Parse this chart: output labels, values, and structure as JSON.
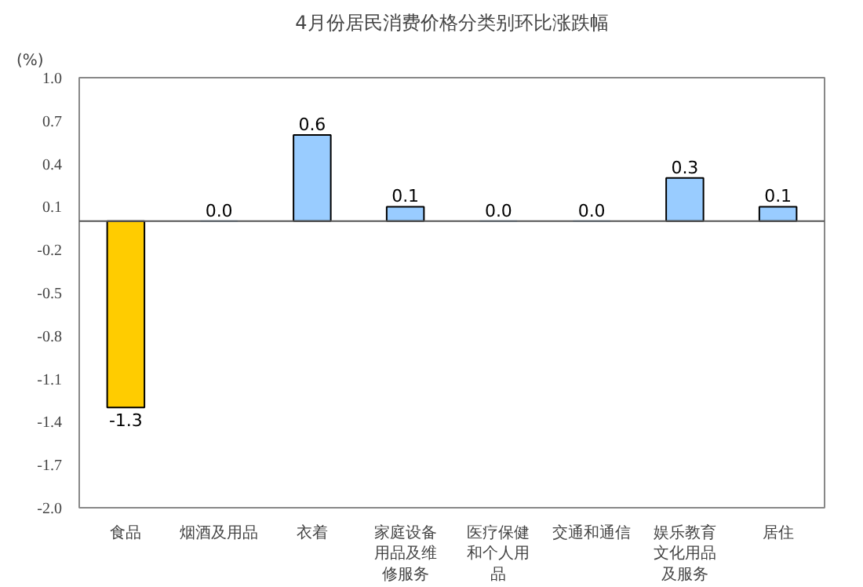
{
  "chart_data": {
    "type": "bar",
    "title": "4月份居民消费价格分类别环比涨跌幅",
    "ylabel": "(%)",
    "categories": [
      "食品",
      "烟酒及用品",
      "衣着",
      "家庭设备用品及维修服务",
      "医疗保健和个人用品",
      "交通和通信",
      "娱乐教育文化用品及服务",
      "居住"
    ],
    "values": [
      -1.3,
      0.0,
      0.6,
      0.1,
      0.0,
      0.0,
      0.3,
      0.1
    ],
    "value_labels": [
      "-1.3",
      "0.0",
      "0.6",
      "0.1",
      "0.0",
      "0.0",
      "0.3",
      "0.1"
    ],
    "colors": [
      "#ffcc00",
      "#99ccff",
      "#99ccff",
      "#99ccff",
      "#99ccff",
      "#99ccff",
      "#99ccff",
      "#99ccff"
    ],
    "ylim": [
      -2.0,
      1.0
    ],
    "yticks": [
      {
        "value": 1.0,
        "label": "1.0"
      },
      {
        "value": 0.7,
        "label": "0.7"
      },
      {
        "value": 0.4,
        "label": "0.4"
      },
      {
        "value": 0.1,
        "label": "0.1"
      },
      {
        "value": -0.2,
        "label": "-0.2"
      },
      {
        "value": -0.5,
        "label": "-0.5"
      },
      {
        "value": -0.8,
        "label": "-0.8"
      },
      {
        "value": -1.1,
        "label": "-1.1"
      },
      {
        "value": -1.4,
        "label": "-1.4"
      },
      {
        "value": -1.7,
        "label": "-1.7"
      },
      {
        "value": -2.0,
        "label": "-2.0"
      }
    ],
    "grid": false
  }
}
